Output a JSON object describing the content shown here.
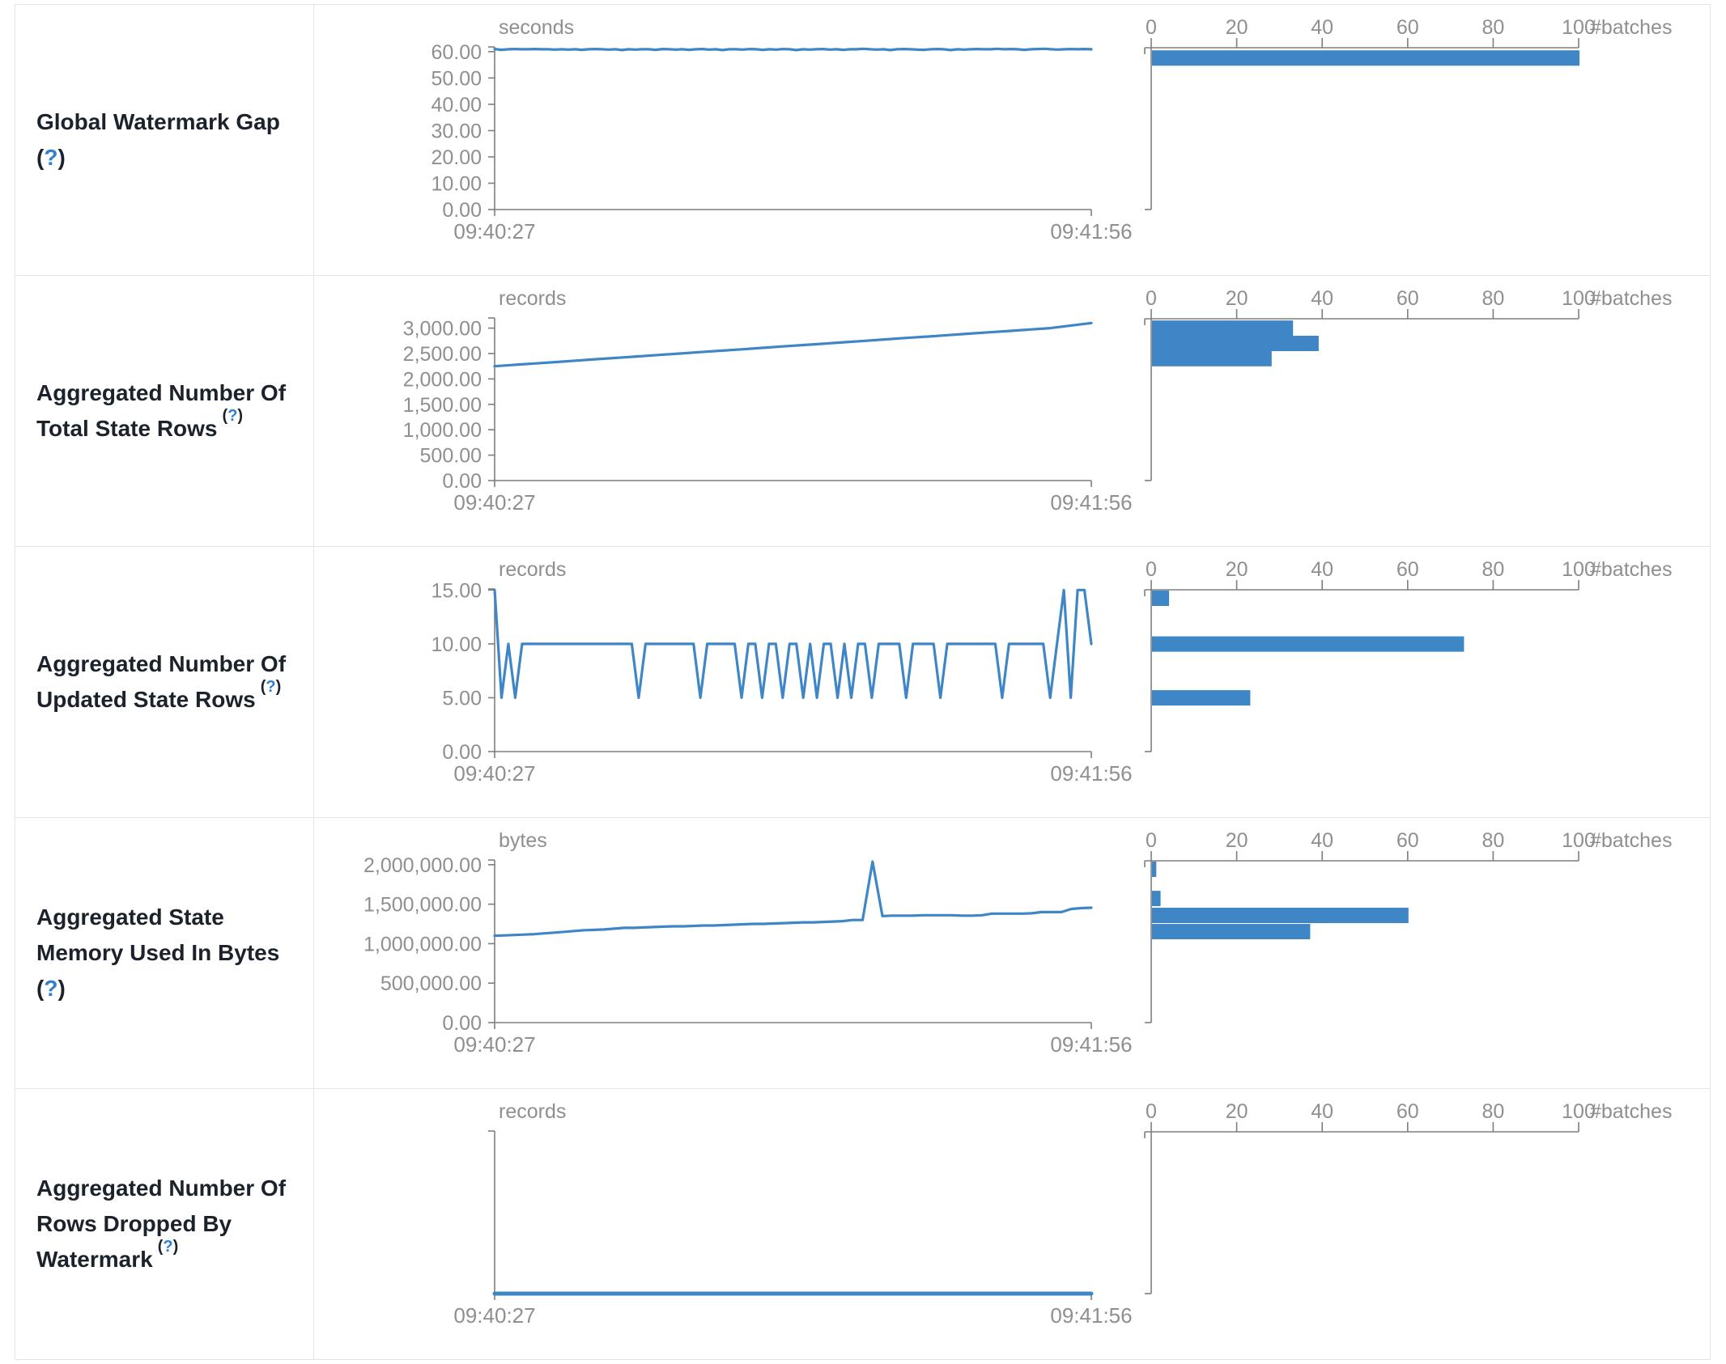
{
  "theme": {
    "accent_blue": "#3e86c6",
    "bar_blue": "#3c85c5",
    "axis_gray": "#7e7e7e",
    "tick_text_gray": "#8f8f8f",
    "label_color": "#1c222c",
    "help_link_color": "#2f7fd0",
    "border_color": "#e1e4e8",
    "background": "#ffffff"
  },
  "time_axis": {
    "start": "09:40:27",
    "end": "09:41:56"
  },
  "histogram_axis": {
    "ticks": [
      0,
      20,
      40,
      60,
      80,
      100
    ],
    "unit_label": "#batches"
  },
  "rows": [
    {
      "label_lines": [
        "Global Watermark Gap"
      ],
      "help_text": "?",
      "help_inline": false
    },
    {
      "label_lines": [
        "Aggregated Number Of",
        "Total State Rows"
      ],
      "help_text": "?",
      "help_inline": true
    },
    {
      "label_lines": [
        "Aggregated Number Of",
        "Updated State Rows"
      ],
      "help_text": "?",
      "help_inline": true
    },
    {
      "label_lines": [
        "Aggregated State",
        "Memory Used In Bytes"
      ],
      "help_text": "?",
      "help_inline": false
    },
    {
      "label_lines": [
        "Aggregated Number Of",
        "Rows Dropped By",
        "Watermark"
      ],
      "help_text": "?",
      "help_inline": true
    }
  ],
  "chart_data": [
    {
      "type": "line",
      "title": "Global Watermark Gap",
      "unit": "seconds",
      "x_start": "09:40:27",
      "x_end": "09:41:56",
      "ylim": [
        0,
        61.8
      ],
      "yticks": [
        0,
        10,
        20,
        30,
        40,
        50,
        60
      ],
      "ytick_labels": [
        "0.00",
        "10.00",
        "20.00",
        "30.00",
        "40.00",
        "50.00",
        "60.00"
      ],
      "values": [
        61,
        60.7,
        60.9,
        61,
        60.9,
        60.9,
        61,
        60.9,
        60.9,
        60.8,
        60.9,
        60.8,
        60.9,
        60.7,
        60.9,
        61,
        60.9,
        60.8,
        60.9,
        60.6,
        60.9,
        60.8,
        60.9,
        60.9,
        60.7,
        61,
        60.9,
        60.8,
        60.9,
        60.7,
        60.9,
        61,
        60.8,
        60.9,
        60.6,
        60.9,
        60.9,
        60.8,
        61,
        60.9,
        60.7,
        60.9,
        60.8,
        61,
        60.9,
        60.6,
        60.9,
        60.8,
        60.9,
        61,
        60.8,
        60.9,
        60.7,
        60.9,
        60.9,
        61.1,
        60.9,
        60.8,
        60.9,
        60.6,
        60.9,
        61,
        60.9,
        60.8,
        60.7,
        60.9,
        61,
        60.9,
        60.6,
        60.9,
        60.8,
        60.9,
        61,
        60.9,
        60.9,
        61.1,
        60.9,
        61,
        60.9,
        60.7,
        60.9,
        61,
        61.1,
        60.9,
        60.8,
        60.9,
        61,
        60.9,
        61,
        60.9
      ],
      "histogram": {
        "type": "bar",
        "orientation": "horizontal",
        "xlim": [
          0,
          100
        ],
        "bins": [
          {
            "value": 60.5,
            "count": 100
          }
        ]
      }
    },
    {
      "type": "line",
      "title": "Aggregated Number Of Total State Rows",
      "unit": "records",
      "x_start": "09:40:27",
      "x_end": "09:41:56",
      "ylim": [
        0,
        3200
      ],
      "yticks": [
        0,
        500,
        1000,
        1500,
        2000,
        2500,
        3000
      ],
      "ytick_labels": [
        "0.00",
        "500.00",
        "1,000.00",
        "1,500.00",
        "2,000.00",
        "2,500.00",
        "3,000.00"
      ],
      "values": [
        2250,
        2278,
        2306,
        2333,
        2361,
        2389,
        2417,
        2444,
        2472,
        2500,
        2528,
        2556,
        2583,
        2611,
        2639,
        2667,
        2694,
        2722,
        2750,
        2778,
        2806,
        2833,
        2861,
        2889,
        2917,
        2944,
        2972,
        3000,
        3050,
        3100
      ],
      "histogram": {
        "type": "bar",
        "orientation": "horizontal",
        "xlim": [
          0,
          100
        ],
        "bins": [
          {
            "value": 3150,
            "count": 33
          },
          {
            "value": 2850,
            "count": 39
          },
          {
            "value": 2550,
            "count": 28
          }
        ]
      }
    },
    {
      "type": "line",
      "title": "Aggregated Number Of Updated State Rows",
      "unit": "records",
      "x_start": "09:40:27",
      "x_end": "09:41:56",
      "ylim": [
        0,
        15.1
      ],
      "yticks": [
        0,
        5,
        10,
        15
      ],
      "ytick_labels": [
        "0.00",
        "5.00",
        "10.00",
        "15.00"
      ],
      "values": [
        15,
        5,
        10,
        5,
        10,
        10,
        10,
        10,
        10,
        10,
        10,
        10,
        10,
        10,
        10,
        10,
        10,
        10,
        10,
        10,
        10,
        5,
        10,
        10,
        10,
        10,
        10,
        10,
        10,
        10,
        5,
        10,
        10,
        10,
        10,
        10,
        5,
        10,
        10,
        5,
        10,
        10,
        5,
        10,
        10,
        5,
        10,
        5,
        10,
        10,
        5,
        10,
        5,
        10,
        10,
        5,
        10,
        10,
        10,
        10,
        5,
        10,
        10,
        10,
        10,
        5,
        10,
        10,
        10,
        10,
        10,
        10,
        10,
        10,
        5,
        10,
        10,
        10,
        10,
        10,
        10,
        5,
        10,
        15,
        5,
        15,
        15,
        10
      ],
      "histogram": {
        "type": "bar",
        "orientation": "horizontal",
        "xlim": [
          0,
          100
        ],
        "bins": [
          {
            "value": 15,
            "count": 4
          },
          {
            "value": 10.7,
            "count": 73
          },
          {
            "value": 5.7,
            "count": 23
          }
        ]
      }
    },
    {
      "type": "line",
      "title": "Aggregated State Memory Used In Bytes",
      "unit": "bytes",
      "x_start": "09:40:27",
      "x_end": "09:41:56",
      "ylim": [
        0,
        2060000
      ],
      "yticks": [
        0,
        500000,
        1000000,
        1500000,
        2000000
      ],
      "ytick_labels": [
        "0.00",
        "500,000.00",
        "1,000,000.00",
        "1,500,000.00",
        "2,000,000.00"
      ],
      "values": [
        1100000,
        1105000,
        1110000,
        1115000,
        1120000,
        1130000,
        1140000,
        1150000,
        1160000,
        1170000,
        1175000,
        1180000,
        1190000,
        1200000,
        1200000,
        1205000,
        1210000,
        1215000,
        1220000,
        1220000,
        1225000,
        1230000,
        1230000,
        1235000,
        1240000,
        1245000,
        1250000,
        1250000,
        1255000,
        1260000,
        1265000,
        1270000,
        1270000,
        1275000,
        1280000,
        1285000,
        1300000,
        1300000,
        2040000,
        1350000,
        1355000,
        1355000,
        1355000,
        1360000,
        1360000,
        1360000,
        1360000,
        1355000,
        1355000,
        1360000,
        1380000,
        1380000,
        1380000,
        1380000,
        1385000,
        1400000,
        1400000,
        1400000,
        1440000,
        1450000,
        1455000
      ],
      "histogram": {
        "type": "bar",
        "orientation": "horizontal",
        "xlim": [
          0,
          100
        ],
        "bins": [
          {
            "value": 2050000,
            "count": 1
          },
          {
            "value": 1670000,
            "count": 2
          },
          {
            "value": 1455000,
            "count": 60
          },
          {
            "value": 1250000,
            "count": 37
          }
        ]
      }
    },
    {
      "type": "line",
      "title": "Aggregated Number Of Rows Dropped By Watermark",
      "unit": "records",
      "x_start": "09:40:27",
      "x_end": "09:41:56",
      "ylim": [
        0,
        1
      ],
      "yticks": [],
      "ytick_labels": [],
      "values": [
        0,
        0
      ],
      "histogram": {
        "type": "bar",
        "orientation": "horizontal",
        "xlim": [
          0,
          100
        ],
        "bins": []
      }
    }
  ]
}
